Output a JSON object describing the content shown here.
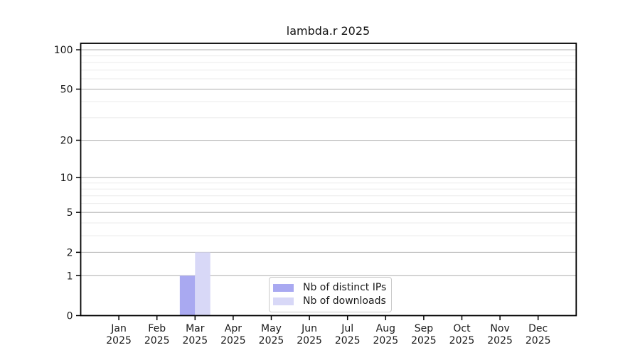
{
  "chart_data": {
    "type": "bar",
    "title": "lambda.r 2025",
    "categories": [
      "Jan",
      "Feb",
      "Mar",
      "Apr",
      "May",
      "Jun",
      "Jul",
      "Aug",
      "Sep",
      "Oct",
      "Nov",
      "Dec"
    ],
    "category_year": "2025",
    "series": [
      {
        "name": "Nb of distinct IPs",
        "color": "#a9a9f1",
        "values": [
          0,
          0,
          1,
          0,
          0,
          0,
          0,
          0,
          0,
          0,
          0,
          0
        ]
      },
      {
        "name": "Nb of downloads",
        "color": "#d8d8f7",
        "values": [
          0,
          0,
          2,
          0,
          0,
          0,
          0,
          0,
          0,
          0,
          0,
          0
        ]
      }
    ],
    "y_scale": "log1p",
    "ylim": [
      0,
      112
    ],
    "y_major_ticks": [
      0,
      1,
      2,
      5,
      10,
      20,
      50,
      100
    ],
    "y_minor_gridlines": [
      3,
      4,
      6,
      7,
      8,
      9,
      30,
      40,
      60,
      70,
      80,
      90
    ],
    "grid": true,
    "legend_position": "lower center",
    "colors": {
      "grid_major": "#b4b4b4",
      "grid_minor": "#ebebeb",
      "axis": "#000000",
      "text": "#1a1a1a",
      "background": "#ffffff"
    }
  }
}
